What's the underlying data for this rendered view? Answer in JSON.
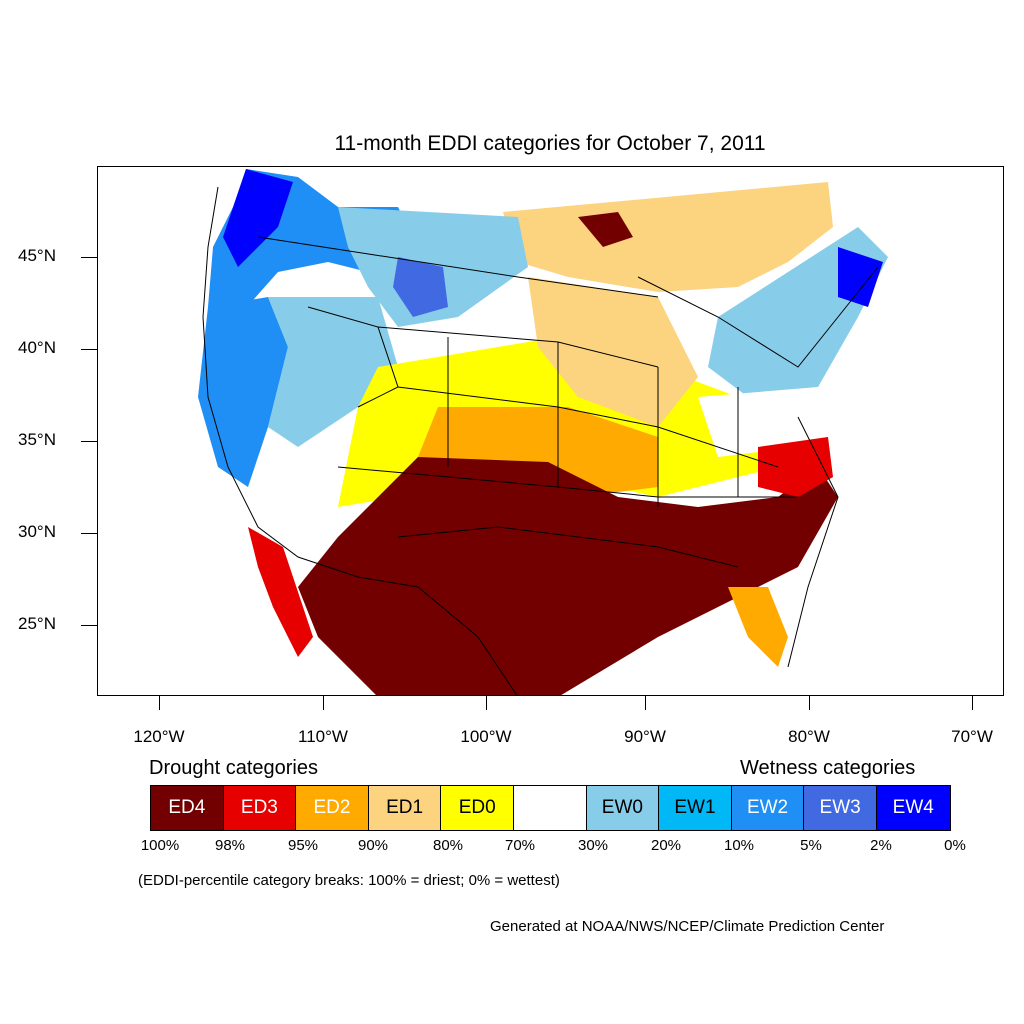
{
  "title": "11-month EDDI categories for October 7, 2011",
  "map": {
    "projection": "lambert-conformal",
    "region": "CONUS",
    "lat_labels": [
      "45°N",
      "40°N",
      "35°N",
      "30°N",
      "25°N"
    ],
    "lon_labels": [
      "120°W",
      "110°W",
      "100°W",
      "90°W",
      "80°W",
      "70°W"
    ],
    "regions": [
      {
        "name": "pacific-northwest",
        "category": "EW4"
      },
      {
        "name": "northern-rockies",
        "category": "EW2"
      },
      {
        "name": "california-coast",
        "category": "EW2"
      },
      {
        "name": "great-basin",
        "category": "EW0"
      },
      {
        "name": "northeast",
        "category": "EW4"
      },
      {
        "name": "ohio-valley",
        "category": "EW0"
      },
      {
        "name": "upper-midwest",
        "category": "ED1"
      },
      {
        "name": "southern-canada",
        "category": "ED1"
      },
      {
        "name": "central-plains",
        "category": "ED0"
      },
      {
        "name": "kansas-missouri",
        "category": "ED2"
      },
      {
        "name": "oklahoma-north-texas",
        "category": "ED4"
      },
      {
        "name": "texas-louisiana",
        "category": "ED4"
      },
      {
        "name": "gulf-coast",
        "category": "ED4"
      },
      {
        "name": "georgia-carolinas",
        "category": "ED4"
      },
      {
        "name": "carolinas-coast",
        "category": "ED3"
      },
      {
        "name": "northern-mexico",
        "category": "ED4"
      },
      {
        "name": "baja-california",
        "category": "ED3"
      },
      {
        "name": "florida",
        "category": "ED2"
      }
    ]
  },
  "legend": {
    "drought_heading": "Drought categories",
    "wetness_heading": "Wetness categories",
    "categories": [
      {
        "label": "ED4",
        "color": "#730000",
        "text_color": "#ffffff"
      },
      {
        "label": "ED3",
        "color": "#e60000",
        "text_color": "#ffffff"
      },
      {
        "label": "ED2",
        "color": "#ffaa00",
        "text_color": "#ffffff"
      },
      {
        "label": "ED1",
        "color": "#fcd37f",
        "text_color": "#000000"
      },
      {
        "label": "ED0",
        "color": "#ffff00",
        "text_color": "#000000"
      },
      {
        "label": "",
        "color": "#ffffff",
        "text_color": "#000000"
      },
      {
        "label": "EW0",
        "color": "#87cdea",
        "text_color": "#000000"
      },
      {
        "label": "EW1",
        "color": "#00b8f5",
        "text_color": "#000000"
      },
      {
        "label": "EW2",
        "color": "#1f8ff5",
        "text_color": "#ffffff"
      },
      {
        "label": "EW3",
        "color": "#4169e1",
        "text_color": "#ffffff"
      },
      {
        "label": "EW4",
        "color": "#0000ff",
        "text_color": "#ffffff"
      }
    ],
    "percentiles": [
      "100%",
      "98%",
      "95%",
      "90%",
      "80%",
      "70%",
      "30%",
      "20%",
      "10%",
      "5%",
      "2%",
      "0%"
    ]
  },
  "note": "(EDDI-percentile category breaks: 100% = driest; 0% = wettest)",
  "credit": "Generated at NOAA/NWS/NCEP/Climate Prediction Center"
}
